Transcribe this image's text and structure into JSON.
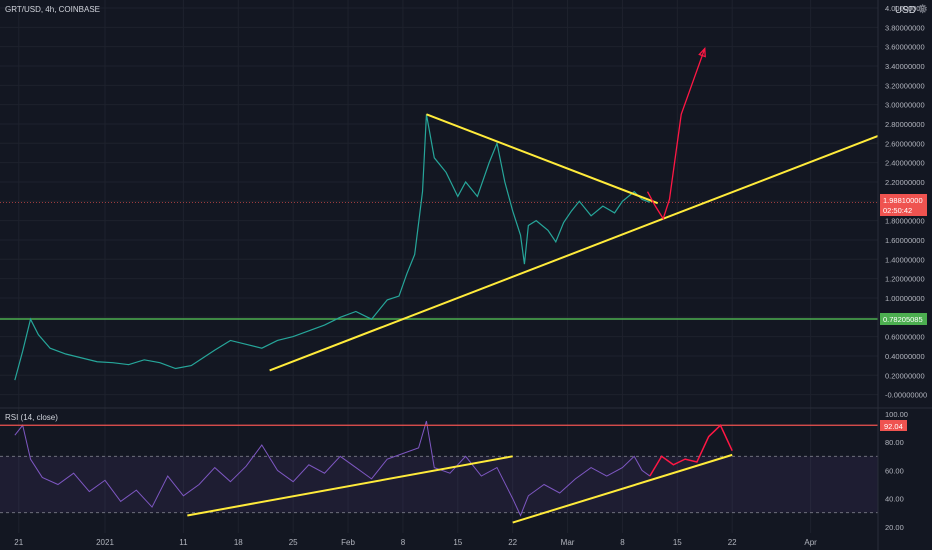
{
  "header": {
    "symbol": "GRT/USD, 4h, COINBASE",
    "currency": "USD",
    "gear_icon": "gear-icon"
  },
  "rsi_label": "RSI (14, close)",
  "price_badge": {
    "value": "1.98810000",
    "countdown": "02:50:42",
    "color": "#ef5350"
  },
  "support_badge": {
    "value": "0.78205085",
    "color": "#4caf50"
  },
  "rsi_badge": {
    "value": "92.04",
    "color": "#ef5350"
  },
  "chart_data": [
    {
      "type": "line",
      "title": "GRT/USD, 4h, COINBASE",
      "ylabel": "USD",
      "ylim": [
        -0.1,
        4.06
      ],
      "y_ticks": [
        "4.00000000",
        "3.80000000",
        "3.60000000",
        "3.40000000",
        "3.20000000",
        "3.00000000",
        "2.80000000",
        "2.60000000",
        "2.40000000",
        "2.20000000",
        "2.00000000",
        "1.80000000",
        "1.60000000",
        "1.40000000",
        "1.20000000",
        "1.00000000",
        "0.80000000",
        "0.60000000",
        "0.40000000",
        "0.20000000",
        "-0.00000000"
      ],
      "y_tick_values": [
        4.0,
        3.8,
        3.6,
        3.4,
        3.2,
        3.0,
        2.8,
        2.6,
        2.4,
        2.2,
        2.0,
        1.8,
        1.6,
        1.4,
        1.2,
        1.0,
        0.8,
        0.6,
        0.4,
        0.2,
        0.0
      ],
      "x_ticks": [
        "21",
        "2021",
        "11",
        "18",
        "25",
        "Feb",
        "8",
        "15",
        "22",
        "Mar",
        "8",
        "15",
        "22",
        "Apr"
      ],
      "x_tick_days": [
        -11,
        0,
        10,
        17,
        24,
        31,
        38,
        45,
        52,
        59,
        66,
        73,
        80,
        90
      ],
      "series": [
        {
          "values": [
            [
              -11.5,
              0.15
            ],
            [
              -10.5,
              0.45
            ],
            [
              -9.5,
              0.78
            ],
            [
              -8.5,
              0.62
            ],
            [
              -7,
              0.48
            ],
            [
              -5,
              0.42
            ],
            [
              -3,
              0.38
            ],
            [
              -1,
              0.34
            ],
            [
              1,
              0.33
            ],
            [
              3,
              0.31
            ],
            [
              5,
              0.36
            ],
            [
              7,
              0.33
            ],
            [
              9,
              0.27
            ],
            [
              11,
              0.3
            ],
            [
              12.5,
              0.38
            ],
            [
              14,
              0.46
            ],
            [
              16,
              0.56
            ],
            [
              18,
              0.52
            ],
            [
              20,
              0.48
            ],
            [
              22,
              0.56
            ],
            [
              24,
              0.6
            ],
            [
              26,
              0.66
            ],
            [
              28,
              0.72
            ],
            [
              30,
              0.8
            ],
            [
              32,
              0.86
            ],
            [
              34,
              0.78
            ],
            [
              36,
              0.98
            ],
            [
              37.5,
              1.02
            ],
            [
              38.5,
              1.25
            ],
            [
              39.5,
              1.45
            ],
            [
              40.5,
              2.1
            ],
            [
              41,
              2.9
            ],
            [
              42,
              2.45
            ],
            [
              43.5,
              2.3
            ],
            [
              45,
              2.05
            ],
            [
              46,
              2.2
            ],
            [
              47.5,
              2.05
            ],
            [
              49,
              2.4
            ],
            [
              50,
              2.6
            ],
            [
              51,
              2.2
            ],
            [
              52,
              1.9
            ],
            [
              53,
              1.65
            ],
            [
              53.5,
              1.35
            ],
            [
              54,
              1.75
            ],
            [
              55,
              1.8
            ],
            [
              56.5,
              1.7
            ],
            [
              57.5,
              1.58
            ],
            [
              58.5,
              1.78
            ],
            [
              59.5,
              1.9
            ],
            [
              60.5,
              2.0
            ],
            [
              62,
              1.85
            ],
            [
              63.5,
              1.95
            ],
            [
              65,
              1.88
            ],
            [
              66,
              2.0
            ],
            [
              67.5,
              2.1
            ],
            [
              68.5,
              2.02
            ],
            [
              69.5,
              1.99
            ]
          ],
          "color": "#26a69a"
        }
      ],
      "annotations": {
        "upper_trendline": [
          [
            41,
            2.9
          ],
          [
            70.5,
            1.98
          ]
        ],
        "lower_trendline": [
          [
            21,
            0.25
          ],
          [
            100,
            2.72
          ]
        ],
        "support_level": 0.78205085,
        "projection_path": [
          [
            69.2,
            2.1
          ],
          [
            70.2,
            1.95
          ],
          [
            71.2,
            1.82
          ],
          [
            72,
            2.02
          ],
          [
            73.5,
            2.9
          ],
          [
            76.5,
            3.58
          ]
        ]
      }
    },
    {
      "type": "line",
      "title": "RSI (14, close)",
      "ylim": [
        18,
        101
      ],
      "y_ticks": [
        "100.00",
        "80.00",
        "60.00",
        "40.00",
        "20.00"
      ],
      "y_tick_values": [
        100,
        80,
        60,
        40,
        20
      ],
      "levels": [
        70,
        30
      ],
      "overbought": 92.04,
      "series": [
        {
          "values": [
            [
              -11.5,
              85
            ],
            [
              -10.5,
              92
            ],
            [
              -9.5,
              68
            ],
            [
              -8,
              55
            ],
            [
              -6,
              50
            ],
            [
              -4,
              58
            ],
            [
              -2,
              45
            ],
            [
              0,
              53
            ],
            [
              2,
              38
            ],
            [
              4,
              46
            ],
            [
              6,
              34
            ],
            [
              8,
              56
            ],
            [
              10,
              42
            ],
            [
              12,
              50
            ],
            [
              14,
              62
            ],
            [
              16,
              52
            ],
            [
              18,
              63
            ],
            [
              20,
              78
            ],
            [
              22,
              60
            ],
            [
              24,
              52
            ],
            [
              26,
              64
            ],
            [
              28,
              58
            ],
            [
              30,
              70
            ],
            [
              32,
              62
            ],
            [
              34,
              54
            ],
            [
              36,
              68
            ],
            [
              38,
              72
            ],
            [
              40,
              76
            ],
            [
              41,
              95
            ],
            [
              42,
              62
            ],
            [
              44,
              58
            ],
            [
              46,
              70
            ],
            [
              48,
              56
            ],
            [
              50,
              62
            ],
            [
              52,
              40
            ],
            [
              53,
              28
            ],
            [
              54,
              42
            ],
            [
              56,
              50
            ],
            [
              58,
              44
            ],
            [
              60,
              54
            ],
            [
              62,
              62
            ],
            [
              64,
              56
            ],
            [
              66,
              62
            ],
            [
              67.5,
              70
            ],
            [
              68.5,
              60
            ],
            [
              69.5,
              56
            ]
          ],
          "color": "#7e57c2"
        }
      ],
      "annotations": {
        "trendline_1": [
          [
            10.5,
            28
          ],
          [
            52,
            70
          ]
        ],
        "trendline_2": [
          [
            52,
            23
          ],
          [
            80,
            71
          ]
        ],
        "projection_path": [
          [
            69.5,
            56
          ],
          [
            71,
            70
          ],
          [
            72.5,
            64
          ],
          [
            74,
            68
          ],
          [
            75.5,
            66
          ],
          [
            77,
            84
          ],
          [
            78.5,
            92
          ],
          [
            80,
            74
          ]
        ]
      }
    }
  ]
}
